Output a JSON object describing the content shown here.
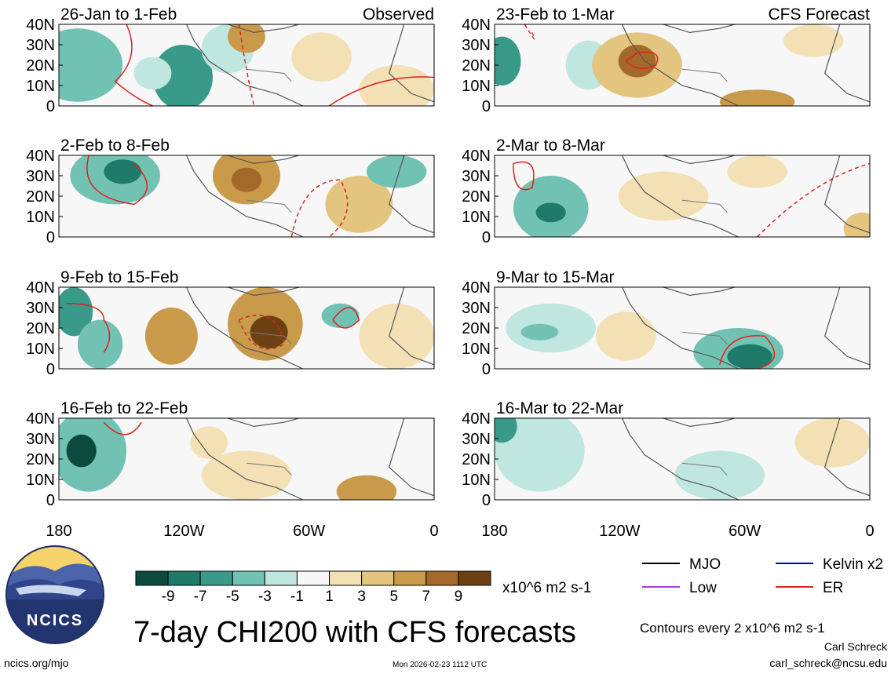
{
  "chart_data": {
    "type": "heatmap",
    "title": "7-day CHI200 with CFS forecasts",
    "units_label": "x10^6 m2 s-1",
    "x_ticks": [
      "180",
      "120W",
      "60W",
      "0"
    ],
    "y_ticks": [
      "40N",
      "30N",
      "20N",
      "10N",
      "0"
    ],
    "xlim": [
      -180,
      0
    ],
    "ylim": [
      0,
      40
    ],
    "colorbar": {
      "tick_labels": [
        "-9",
        "-7",
        "-5",
        "-3",
        "-1",
        "1",
        "3",
        "5",
        "7",
        "9"
      ],
      "colors": [
        "#0d4a3e",
        "#1f7a69",
        "#3a9a8a",
        "#72c2b4",
        "#bfe6df",
        "#f7f7f7",
        "#f3e0b4",
        "#e3c57f",
        "#c89a4a",
        "#a3692a",
        "#6b4113"
      ]
    },
    "panels": [
      {
        "title": "26-Jan to 1-Feb",
        "label": "Observed"
      },
      {
        "title": "23-Feb to 1-Mar",
        "label": "CFS Forecast"
      },
      {
        "title": "2-Feb to 8-Feb",
        "label": ""
      },
      {
        "title": "2-Mar to 8-Mar",
        "label": ""
      },
      {
        "title": "9-Feb to 15-Feb",
        "label": ""
      },
      {
        "title": "9-Mar to 15-Mar",
        "label": ""
      },
      {
        "title": "16-Feb to 22-Feb",
        "label": ""
      },
      {
        "title": "16-Mar to 22-Mar",
        "label": ""
      }
    ],
    "legend": [
      {
        "name": "MJO",
        "color": "#000000"
      },
      {
        "name": "Kelvin x2",
        "color": "#0000cc"
      },
      {
        "name": "Low",
        "color": "#a040e0"
      },
      {
        "name": "ER",
        "color": "#e02020"
      }
    ],
    "contour_note": "Contours every 2 x10^6 m2 s-1"
  },
  "footer": {
    "left": "ncics.org/mjo",
    "timestamp": "Mon 2026-02-23 1112 UTC",
    "author": "Carl Schreck",
    "email": "carl_schreck@ncsu.edu"
  },
  "logo": {
    "text": "NCICS"
  }
}
